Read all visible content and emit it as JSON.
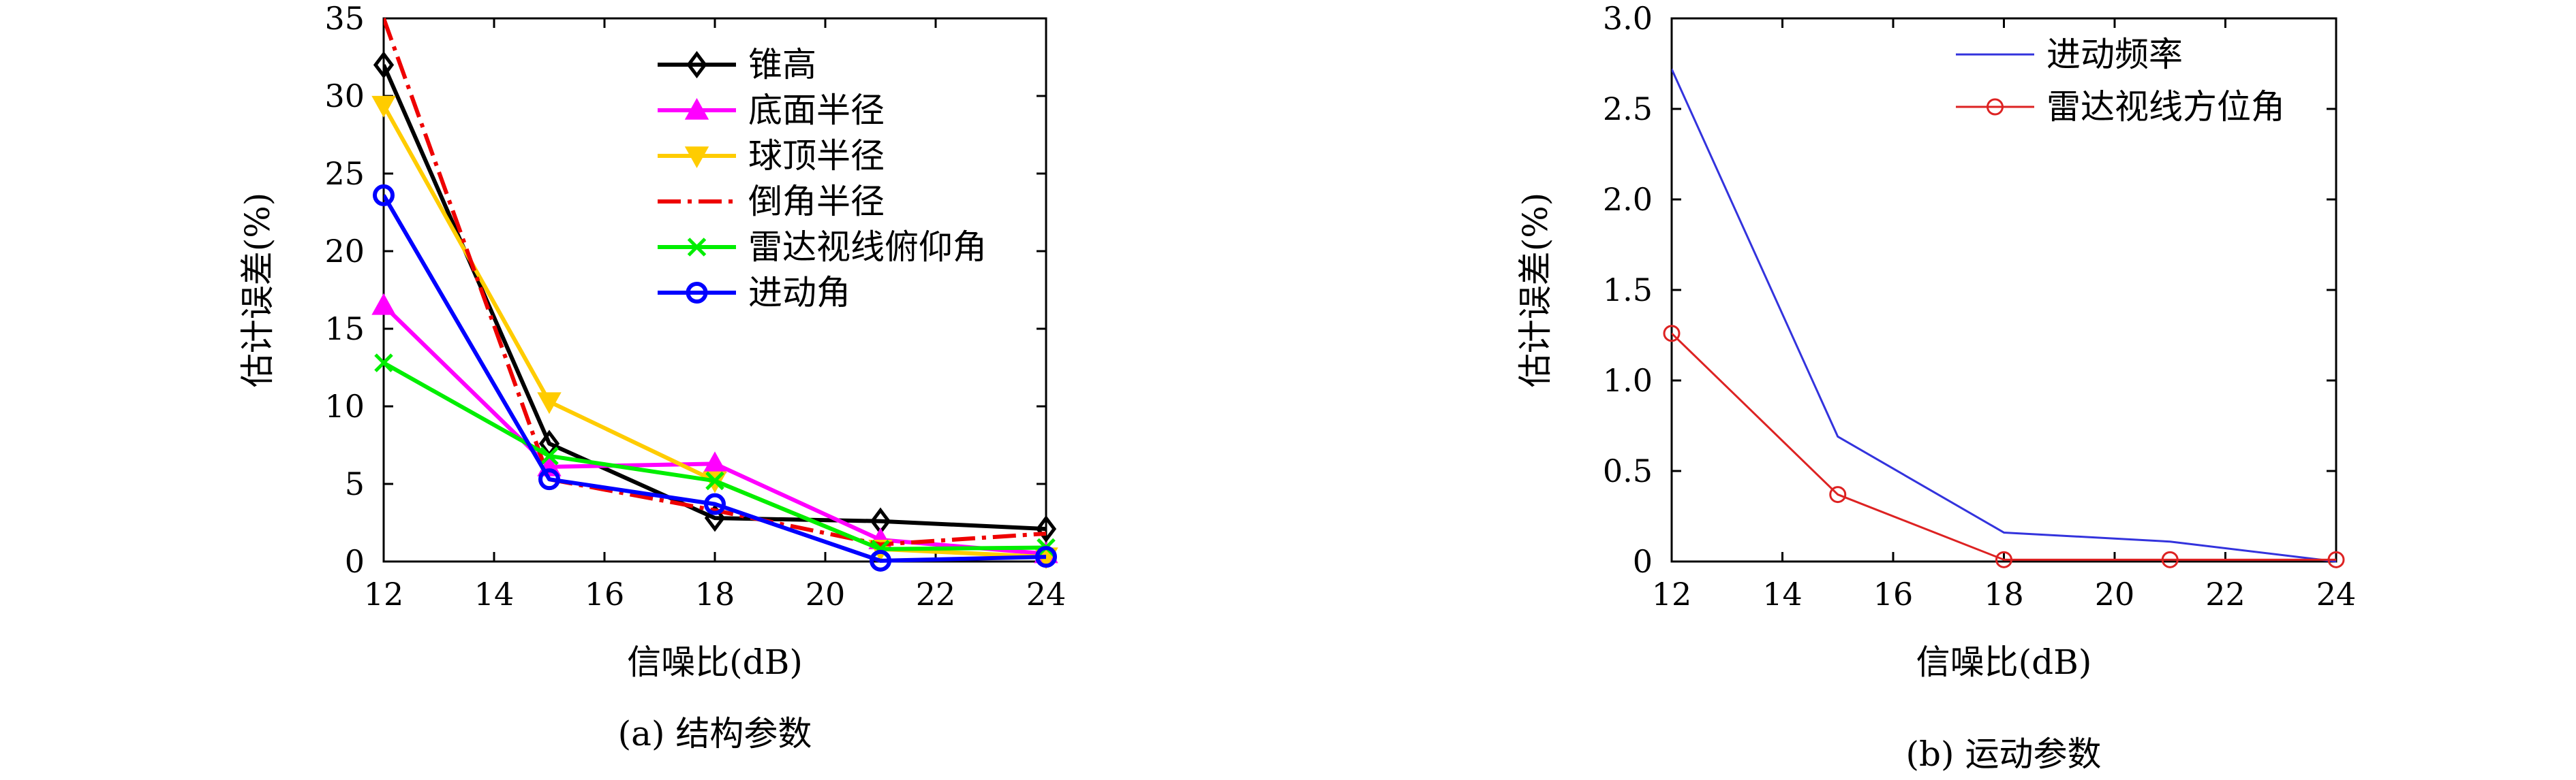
{
  "chart_data": [
    {
      "type": "line",
      "caption": "(a) 结构参数",
      "xlabel": "信噪比(dB)",
      "ylabel": "估计误差(%)",
      "xlim": [
        12,
        24
      ],
      "ylim": [
        0,
        35
      ],
      "xticks": [
        12,
        14,
        16,
        18,
        20,
        22,
        24
      ],
      "yticks": [
        0,
        5,
        10,
        15,
        20,
        25,
        30,
        35
      ],
      "legend_position": "top-right",
      "x": [
        12,
        15,
        18,
        21,
        24
      ],
      "series": [
        {
          "name": "锥高",
          "color": "#000000",
          "marker": "diamond",
          "dash": "solid",
          "values": [
            32,
            7.6,
            2.8,
            2.6,
            2.1
          ]
        },
        {
          "name": "底面半径",
          "color": "#ff00ff",
          "marker": "triangle-up",
          "dash": "solid",
          "values": [
            16.5,
            6.1,
            6.3,
            1.4,
            0.5
          ]
        },
        {
          "name": "球顶半径",
          "color": "#ffcc00",
          "marker": "triangle-down",
          "dash": "solid",
          "values": [
            29.4,
            10.3,
            5.2,
            0.8,
            0.3
          ]
        },
        {
          "name": "倒角半径",
          "color": "#ee0000",
          "marker": "none",
          "dash": "dashdot",
          "values": [
            35,
            5.3,
            3.3,
            1.1,
            1.8
          ]
        },
        {
          "name": "雷达视线俯仰角",
          "color": "#00ee00",
          "marker": "x",
          "dash": "solid",
          "values": [
            12.8,
            6.8,
            5.2,
            0.8,
            0.9
          ]
        },
        {
          "name": "进动角",
          "color": "#0000ff",
          "marker": "circle",
          "dash": "solid",
          "values": [
            23.6,
            5.3,
            3.7,
            0.05,
            0.3
          ]
        }
      ]
    },
    {
      "type": "line",
      "caption": "(b) 运动参数",
      "xlabel": "信噪比(dB)",
      "ylabel": "估计误差(%)",
      "xlim": [
        12,
        24
      ],
      "ylim": [
        0,
        3.0
      ],
      "xticks": [
        12,
        14,
        16,
        18,
        20,
        22,
        24
      ],
      "yticks": [
        0,
        0.5,
        1.0,
        1.5,
        2.0,
        2.5,
        3.0
      ],
      "ytick_labels": [
        "0",
        "0.5",
        "1.0",
        "1.5",
        "2.0",
        "2.5",
        "3.0"
      ],
      "legend_position": "top-right",
      "x": [
        12,
        15,
        18,
        21,
        24
      ],
      "series": [
        {
          "name": "进动频率",
          "color": "#3333dd",
          "marker": "none",
          "dash": "solid",
          "values": [
            2.72,
            0.69,
            0.16,
            0.11,
            0.0
          ]
        },
        {
          "name": "雷达视线方位角",
          "color": "#dd2222",
          "marker": "circle-open",
          "dash": "solid",
          "values": [
            1.26,
            0.37,
            0.01,
            0.01,
            0.01
          ]
        }
      ]
    }
  ]
}
